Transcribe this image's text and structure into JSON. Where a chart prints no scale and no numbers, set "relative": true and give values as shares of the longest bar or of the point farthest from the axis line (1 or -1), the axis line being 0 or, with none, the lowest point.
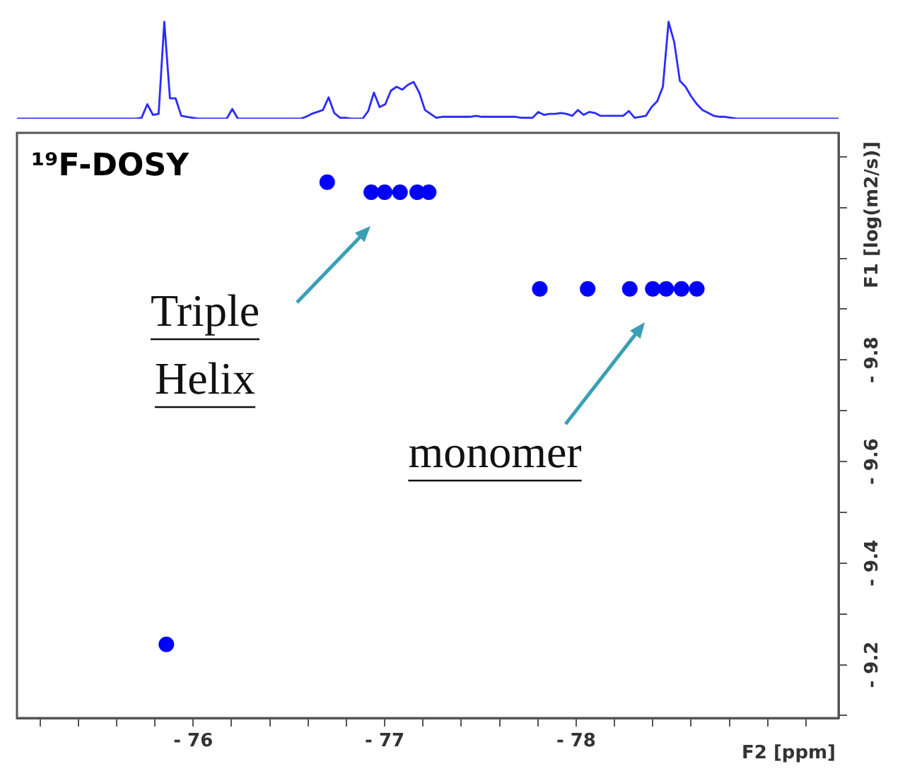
{
  "chart_data": [
    {
      "type": "line",
      "relative": true,
      "color": "#2b2bff",
      "tick_labels": false,
      "categories": [
        null,
        null,
        null,
        null,
        null,
        null,
        null,
        null,
        null,
        null,
        null,
        null,
        null,
        null,
        null,
        null,
        null,
        null,
        null,
        null,
        null,
        null,
        null,
        null,
        null,
        null,
        null,
        null,
        null,
        null,
        null,
        null,
        null,
        null,
        null,
        null,
        null,
        null,
        null,
        null,
        null,
        null,
        null,
        null,
        null,
        null,
        null,
        null,
        null,
        null,
        null,
        null,
        null,
        null,
        null,
        null,
        null,
        null,
        null,
        null,
        null,
        null,
        null,
        null,
        null,
        null,
        null,
        null,
        null,
        null,
        null,
        null,
        null,
        null,
        null,
        null,
        null,
        null,
        null,
        null,
        null,
        null,
        null,
        null,
        null,
        null,
        null,
        null,
        null,
        null,
        null,
        null,
        null,
        null,
        null,
        null,
        null,
        null,
        null,
        null,
        null,
        null,
        null,
        null,
        null,
        null,
        null,
        null,
        null,
        null,
        null,
        null,
        null,
        null,
        null,
        null,
        null,
        null,
        null,
        null,
        null,
        null,
        null,
        null,
        null,
        null,
        null,
        null,
        null,
        null,
        null,
        null,
        null,
        null,
        null,
        null,
        null,
        null,
        null,
        null,
        null,
        null,
        null,
        null,
        null,
        null
      ],
      "values": [
        0,
        0,
        0,
        0,
        0,
        0,
        0,
        0,
        0,
        0,
        0,
        0,
        0,
        0,
        0,
        0,
        0,
        0,
        0,
        0,
        0,
        0,
        0.01,
        0.15,
        0.04,
        0.05,
        1,
        0.21,
        0.21,
        0.03,
        0.02,
        0.01,
        0,
        0,
        0,
        0,
        0,
        0,
        0.1,
        0,
        0,
        0,
        0,
        0,
        0,
        0,
        0,
        0,
        0,
        0,
        0,
        0.02,
        0.05,
        0.07,
        0.09,
        0.22,
        0.06,
        0.01,
        0.01,
        0,
        0,
        0,
        0.08,
        0.27,
        0.12,
        0.15,
        0.29,
        0.33,
        0.3,
        0.35,
        0.38,
        0.27,
        0.09,
        0.05,
        0.01,
        0.02,
        0.02,
        0.02,
        0.02,
        0.02,
        0.02,
        0.03,
        0.02,
        0.02,
        0.02,
        0.02,
        0.02,
        0.02,
        0.02,
        0.01,
        0.01,
        0.01,
        0.07,
        0.04,
        0.05,
        0.05,
        0.06,
        0.05,
        0.03,
        0.09,
        0.04,
        0.07,
        0.06,
        0.03,
        0.03,
        0.03,
        0.03,
        0.03,
        0.08,
        0.01,
        0.02,
        0.03,
        0.12,
        0.18,
        0.33,
        1,
        0.79,
        0.39,
        0.33,
        0.23,
        0.15,
        0.09,
        0.06,
        0.03,
        0.02,
        0.02,
        0.01,
        0,
        0,
        0,
        0,
        0,
        0,
        0,
        0,
        0,
        0,
        0,
        0,
        0,
        0,
        0,
        0,
        0,
        0,
        0
      ]
    },
    {
      "type": "scatter",
      "title": "¹⁹F-DOSY",
      "xlabel": "F2 [ppm]",
      "ylabel": "F1 [log(m2/s)]",
      "color": "#0000ff",
      "marker": "circle",
      "x": [
        -76.7,
        -76.93,
        -77.0,
        -77.08,
        -77.17,
        -77.23,
        -77.81,
        -78.06,
        -78.28,
        -78.4,
        -78.47,
        -78.55,
        -78.63,
        -75.86
      ],
      "values": [
        -10.15,
        -10.13,
        -10.13,
        -10.13,
        -10.13,
        -10.13,
        -9.94,
        -9.94,
        -9.94,
        -9.94,
        -9.94,
        -9.94,
        -9.94,
        -9.24
      ],
      "xlim": [
        -75.08,
        -79.37
      ],
      "ylim": [
        -9.095,
        -10.247
      ],
      "xticks": [
        {
          "value": -75.2,
          "label": null
        },
        {
          "value": -75.4,
          "label": null
        },
        {
          "value": -75.6,
          "label": null
        },
        {
          "value": -75.8,
          "label": null
        },
        {
          "value": -76,
          "label": "- 76"
        },
        {
          "value": -76.2,
          "label": null
        },
        {
          "value": -76.4,
          "label": null
        },
        {
          "value": -76.6,
          "label": null
        },
        {
          "value": -76.8,
          "label": null
        },
        {
          "value": -77,
          "label": "- 77"
        },
        {
          "value": -77.2,
          "label": null
        },
        {
          "value": -77.4,
          "label": null
        },
        {
          "value": -77.6,
          "label": null
        },
        {
          "value": -77.8,
          "label": null
        },
        {
          "value": -78,
          "label": "- 78"
        },
        {
          "value": -78.2,
          "label": null
        },
        {
          "value": -78.4,
          "label": null
        },
        {
          "value": -78.6,
          "label": null
        },
        {
          "value": -78.8,
          "label": null
        },
        {
          "value": -79,
          "label": null
        },
        {
          "value": -79.2,
          "label": null
        }
      ],
      "yticks": [
        {
          "value": -10.2,
          "label": null
        },
        {
          "value": -10.1,
          "label": null
        },
        {
          "value": -10.0,
          "label": null
        },
        {
          "value": -9.9,
          "label": null
        },
        {
          "value": -9.8,
          "label": "- 9.8"
        },
        {
          "value": -9.7,
          "label": null
        },
        {
          "value": -9.6,
          "label": "- 9.6"
        },
        {
          "value": -9.5,
          "label": null
        },
        {
          "value": -9.4,
          "label": "- 9.4"
        },
        {
          "value": -9.3,
          "label": null
        },
        {
          "value": -9.2,
          "label": "- 9.2"
        },
        {
          "value": -9.1,
          "label": null
        }
      ],
      "annotations": [
        "Triple Helix",
        "monomer"
      ]
    }
  ]
}
